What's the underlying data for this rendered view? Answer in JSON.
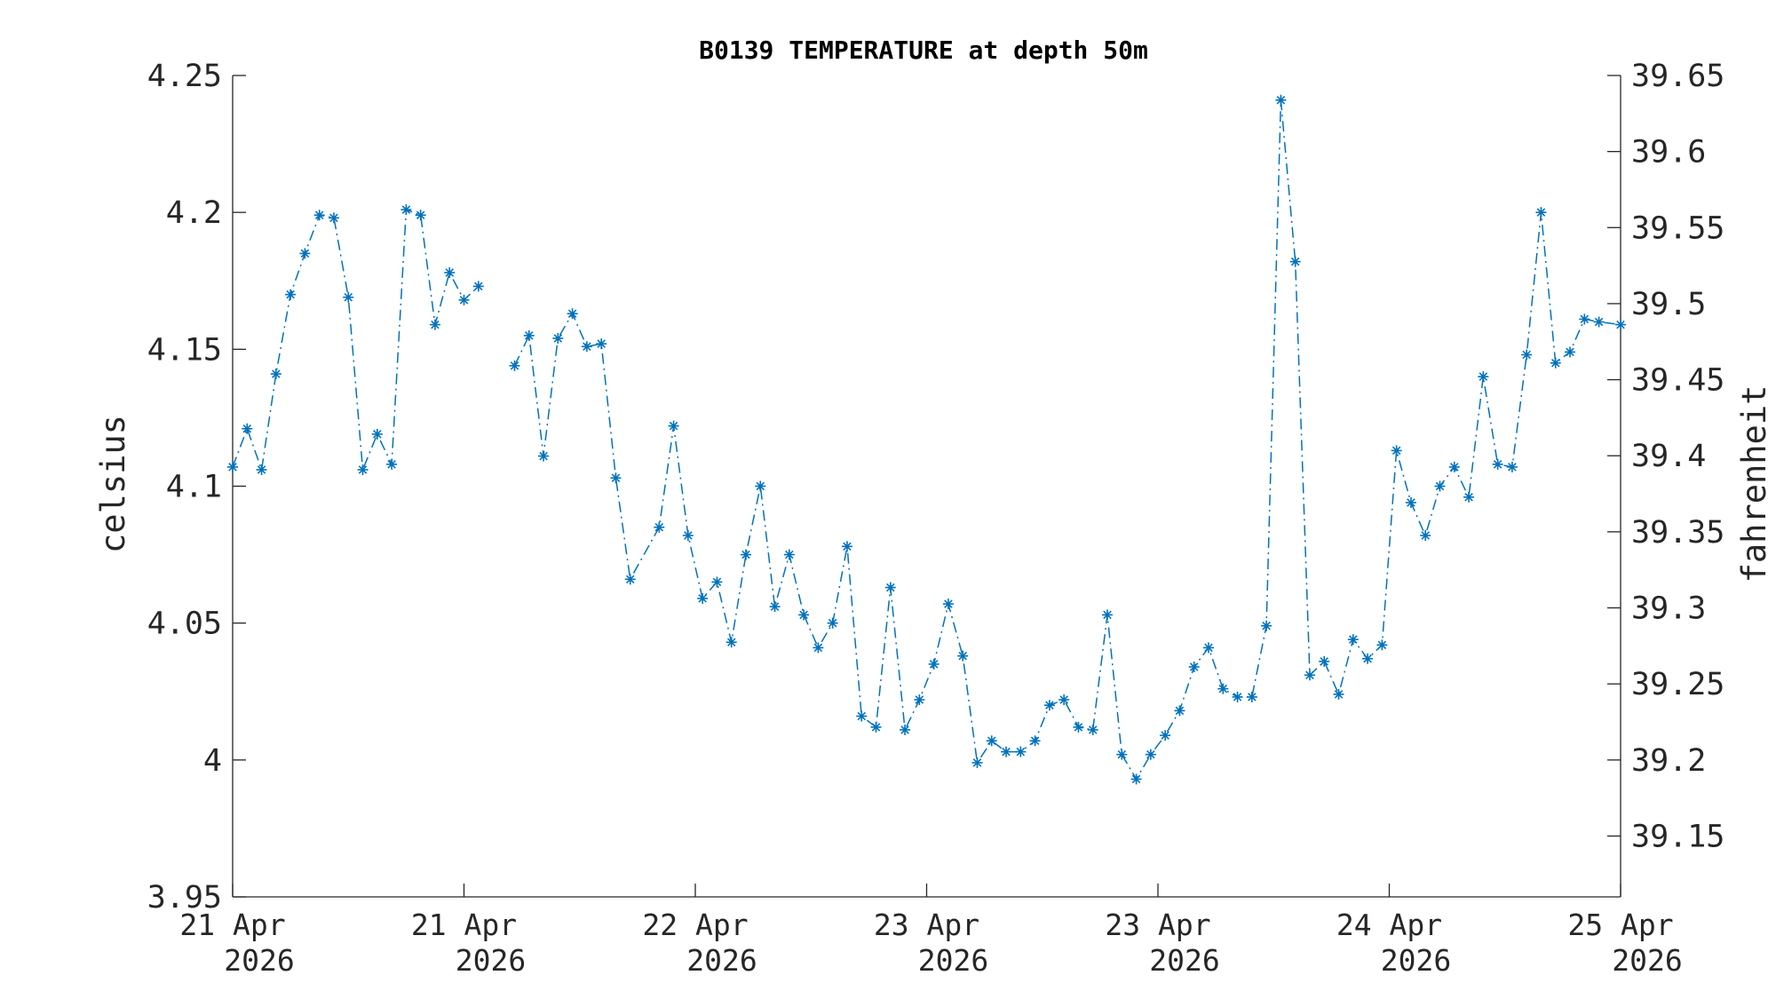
{
  "chart_data": {
    "type": "line",
    "title": "B0139 TEMPERATURE at depth 50m",
    "ylabel_left": "celsius",
    "ylabel_right": "fahrenheit",
    "x_unit": "hours since 21 Apr 2026 00:00",
    "x_range": [
      0,
      96
    ],
    "ylim_left": [
      3.95,
      4.25
    ],
    "ylim_right_derived": "celsius*9/5+32",
    "yticks_left": [
      "3.95",
      "4",
      "4.05",
      "4.1",
      "4.15",
      "4.2",
      "4.25"
    ],
    "yticks_left_values": [
      3.95,
      4.0,
      4.05,
      4.1,
      4.15,
      4.2,
      4.25
    ],
    "yticks_right": [
      "39.15",
      "39.2",
      "39.25",
      "39.3",
      "39.35",
      "39.4",
      "39.45",
      "39.5",
      "39.55",
      "39.6",
      "39.65"
    ],
    "yticks_right_values": [
      39.15,
      39.2,
      39.25,
      39.3,
      39.35,
      39.4,
      39.45,
      39.5,
      39.55,
      39.6,
      39.65
    ],
    "xticks": [
      {
        "t": 0,
        "line1": "21 Apr",
        "line2": "2026"
      },
      {
        "t": 16,
        "line1": "21 Apr",
        "line2": "2026"
      },
      {
        "t": 32,
        "line1": "22 Apr",
        "line2": "2026"
      },
      {
        "t": 48,
        "line1": "23 Apr",
        "line2": "2026"
      },
      {
        "t": 64,
        "line1": "23 Apr",
        "line2": "2026"
      },
      {
        "t": 80,
        "line1": "24 Apr",
        "line2": "2026"
      },
      {
        "t": 96,
        "line1": "25 Apr",
        "line2": "2026"
      }
    ],
    "grid": false,
    "marker": "asterisk",
    "line_style": "dash-dot",
    "color": "#0072BD",
    "series": [
      {
        "values": [
          [
            0.0,
            4.107
          ],
          [
            1.0,
            4.121
          ],
          [
            2.0,
            4.106
          ],
          [
            3.0,
            4.141
          ],
          [
            4.0,
            4.17
          ],
          [
            5.0,
            4.185
          ],
          [
            6.0,
            4.199
          ],
          [
            7.0,
            4.198
          ],
          [
            8.0,
            4.169
          ],
          [
            9.0,
            4.106
          ],
          [
            10.0,
            4.119
          ],
          [
            11.0,
            4.108
          ],
          [
            12.0,
            4.201
          ],
          [
            13.0,
            4.199
          ],
          [
            14.0,
            4.159
          ],
          [
            15.0,
            4.178
          ],
          [
            16.0,
            4.168
          ],
          [
            17.0,
            4.173
          ],
          null,
          [
            19.5,
            4.144
          ],
          [
            20.5,
            4.155
          ],
          [
            21.5,
            4.111
          ],
          [
            22.5,
            4.154
          ],
          [
            23.5,
            4.163
          ],
          [
            24.5,
            4.151
          ],
          [
            25.5,
            4.152
          ],
          [
            26.5,
            4.103
          ],
          [
            27.5,
            4.066
          ],
          [
            29.5,
            4.085
          ],
          [
            30.5,
            4.122
          ],
          [
            31.5,
            4.082
          ],
          [
            32.5,
            4.059
          ],
          [
            33.5,
            4.065
          ],
          [
            34.5,
            4.043
          ],
          [
            35.5,
            4.075
          ],
          [
            36.5,
            4.1
          ],
          [
            37.5,
            4.056
          ],
          [
            38.5,
            4.075
          ],
          [
            39.5,
            4.053
          ],
          [
            40.5,
            4.041
          ],
          [
            41.5,
            4.05
          ],
          [
            42.5,
            4.078
          ],
          [
            43.5,
            4.016
          ],
          [
            44.5,
            4.012
          ],
          [
            45.5,
            4.063
          ],
          [
            46.5,
            4.011
          ],
          [
            47.5,
            4.022
          ],
          [
            48.5,
            4.035
          ],
          [
            49.5,
            4.057
          ],
          [
            50.5,
            4.038
          ],
          [
            51.5,
            3.999
          ],
          [
            52.5,
            4.007
          ],
          [
            53.5,
            4.003
          ],
          [
            54.5,
            4.003
          ],
          [
            55.5,
            4.007
          ],
          [
            56.5,
            4.02
          ],
          [
            57.5,
            4.022
          ],
          [
            58.5,
            4.012
          ],
          [
            59.5,
            4.011
          ],
          [
            60.5,
            4.053
          ],
          [
            61.5,
            4.002
          ],
          [
            62.5,
            3.993
          ],
          [
            63.5,
            4.002
          ],
          [
            64.5,
            4.009
          ],
          [
            65.5,
            4.018
          ],
          [
            66.5,
            4.034
          ],
          [
            67.5,
            4.041
          ],
          [
            68.5,
            4.026
          ],
          [
            69.5,
            4.023
          ],
          [
            70.5,
            4.023
          ],
          [
            71.5,
            4.049
          ],
          [
            72.5,
            4.241
          ],
          [
            73.5,
            4.182
          ],
          [
            74.5,
            4.031
          ],
          [
            75.5,
            4.036
          ],
          [
            76.5,
            4.024
          ],
          [
            77.5,
            4.044
          ],
          [
            78.5,
            4.037
          ],
          [
            79.5,
            4.042
          ],
          [
            80.5,
            4.113
          ],
          [
            81.5,
            4.094
          ],
          [
            82.5,
            4.082
          ],
          [
            83.5,
            4.1
          ],
          [
            84.5,
            4.107
          ],
          [
            85.5,
            4.096
          ],
          [
            86.5,
            4.14
          ],
          [
            87.5,
            4.108
          ],
          [
            88.5,
            4.107
          ],
          [
            89.5,
            4.148
          ],
          [
            90.5,
            4.2
          ],
          [
            91.5,
            4.145
          ],
          [
            92.5,
            4.149
          ],
          [
            93.5,
            4.161
          ],
          [
            94.5,
            4.16
          ],
          [
            96.0,
            4.159
          ]
        ]
      }
    ]
  }
}
